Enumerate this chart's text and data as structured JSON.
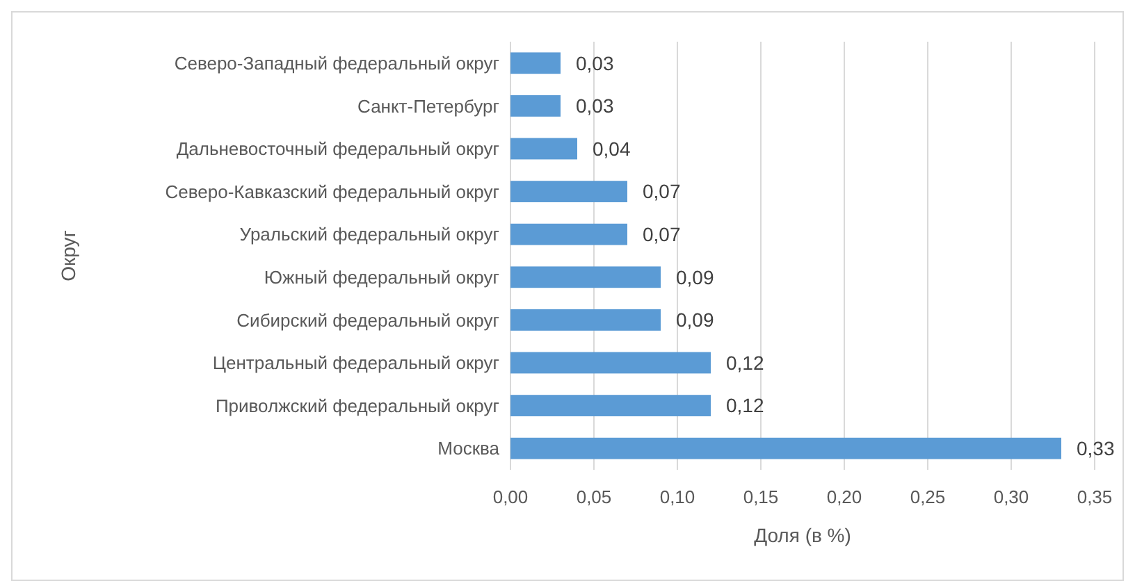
{
  "chart_data": {
    "type": "bar",
    "orientation": "horizontal",
    "xlabel": "Доля (в %)",
    "ylabel": "Округ",
    "categories": [
      "Северо-Западный федеральный округ",
      "Санкт-Петербург",
      "Дальневосточный федеральный округ",
      "Северо-Кавказский федеральный округ",
      "Уральский федеральный округ",
      "Южный федеральный округ",
      "Сибирский федеральный округ",
      "Центральный федеральный округ",
      "Приволжский федеральный округ",
      "Москва"
    ],
    "values": [
      0.03,
      0.03,
      0.04,
      0.07,
      0.07,
      0.09,
      0.09,
      0.12,
      0.12,
      0.33
    ],
    "value_labels": [
      "0,03",
      "0,03",
      "0,04",
      "0,07",
      "0,07",
      "0,09",
      "0,09",
      "0,12",
      "0,12",
      "0,33"
    ],
    "color": "#5b9bd5",
    "xlim": [
      0,
      0.35
    ],
    "xticks": [
      {
        "value": 0,
        "label": "0,00"
      },
      {
        "value": 0.05,
        "label": "0,05"
      },
      {
        "value": 0.1,
        "label": "0,10"
      },
      {
        "value": 0.15,
        "label": "0,15"
      },
      {
        "value": 0.2,
        "label": "0,20"
      },
      {
        "value": 0.25,
        "label": "0,25"
      },
      {
        "value": 0.3,
        "label": "0,30"
      },
      {
        "value": 0.35,
        "label": "0,35"
      }
    ],
    "grid": "x"
  }
}
